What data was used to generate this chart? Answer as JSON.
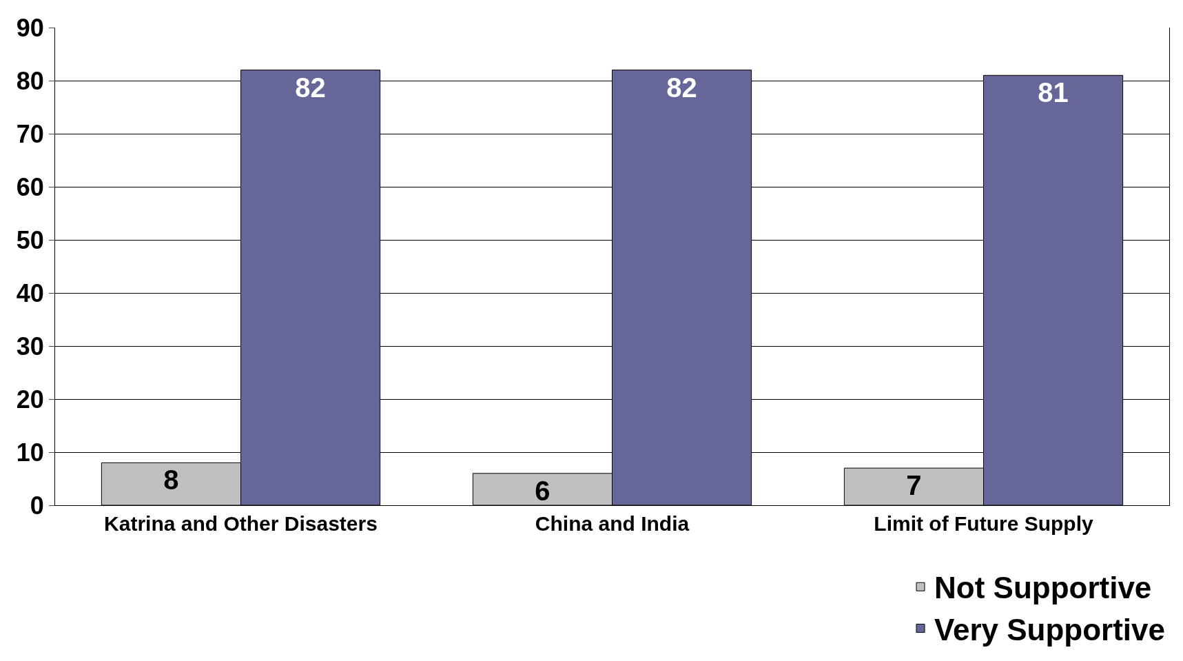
{
  "chart_data": {
    "type": "bar",
    "categories": [
      "Katrina and Other Disasters",
      "China and India",
      "Limit of Future Supply"
    ],
    "series": [
      {
        "name": "Not Supportive",
        "color": "#c0c0c0",
        "values": [
          8,
          6,
          7
        ]
      },
      {
        "name": "Very Supportive",
        "color": "#666699",
        "values": [
          82,
          82,
          81
        ]
      }
    ],
    "ylim": [
      0,
      90
    ],
    "yticks": [
      0,
      10,
      20,
      30,
      40,
      50,
      60,
      70,
      80,
      90
    ],
    "grid": "y",
    "legend": "bottom right",
    "data_labels": true
  }
}
